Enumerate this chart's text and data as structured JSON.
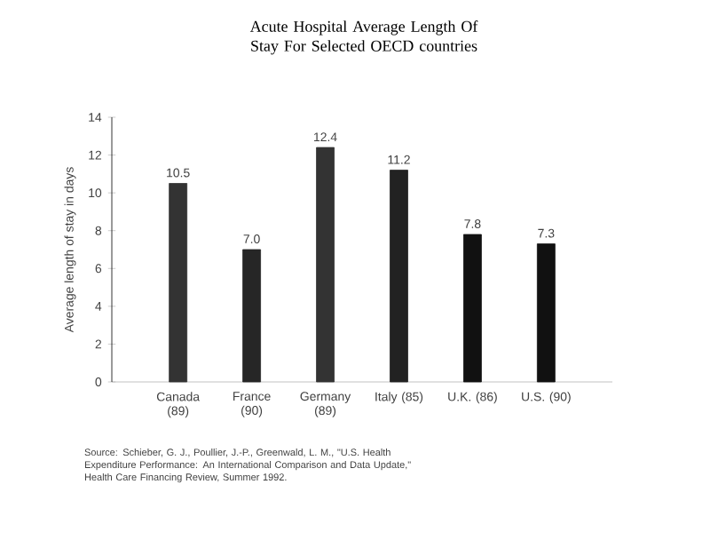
{
  "chart_data": {
    "type": "bar",
    "title": "Acute Hospital Average Length Of Stay For Selected OECD countries",
    "ylabel": "Average length of stay in days",
    "categories": [
      "Canada (89)",
      "France (90)",
      "Germany (89)",
      "Italy (85)",
      "U.K. (86)",
      "U.S. (90)"
    ],
    "values": [
      10.5,
      7.0,
      12.4,
      11.2,
      7.8,
      7.3
    ],
    "colors": [
      "#333333",
      "#262626",
      "#333333",
      "#222222",
      "#111111",
      "#111111"
    ],
    "value_labels": [
      "10.5",
      "7.0",
      "12.4",
      "11.2",
      "7.8",
      "7.3"
    ],
    "ylim": [
      0,
      14
    ],
    "yticks": [
      0,
      2,
      4,
      6,
      8,
      10,
      12,
      14
    ],
    "grid": false,
    "annotations": [
      "Source: Schieber, G. J., Poullier, J.-P., Greenwald, L. M., \"U.S. Health Expenditure Performance: An International Comparison and Data Update,\" Health Care Financing Review, Summer 1992."
    ]
  }
}
